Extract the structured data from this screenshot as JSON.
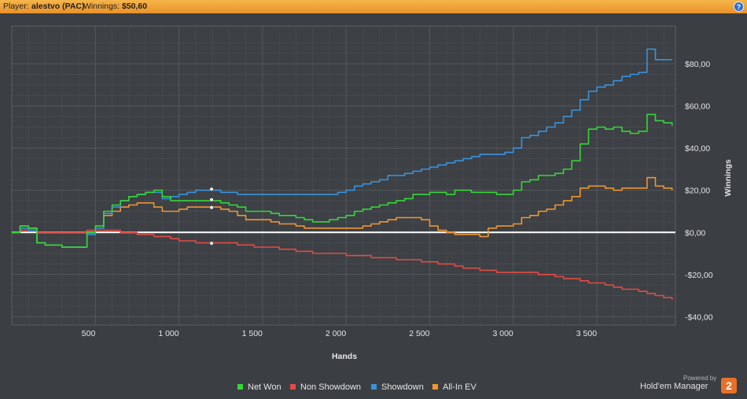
{
  "header": {
    "player_label": "Player:",
    "player_name": "alestvo (PAC)",
    "winnings_label": "Winnings:",
    "winnings_value": "$50,60",
    "help_icon": "?"
  },
  "colors": {
    "net_won": "#35d63a",
    "non_showdown": "#e04c46",
    "showdown": "#3a92de",
    "all_in_ev": "#ee9534",
    "zero_line": "#ffffff",
    "grid": "#54585d",
    "background": "#3b3e42"
  },
  "chart_data": {
    "type": "line",
    "xlabel": "Hands",
    "ylabel": "Winnings",
    "xlim": [
      0,
      3970
    ],
    "ylim": [
      -44,
      98
    ],
    "x_ticks": [
      500,
      1000,
      1500,
      2000,
      2500,
      3000,
      3500
    ],
    "x_tick_labels": [
      "500",
      "1 000",
      "1 500",
      "2 000",
      "2 500",
      "3 000",
      "3 500"
    ],
    "y_ticks": [
      80,
      60,
      40,
      20,
      0,
      -20,
      -40
    ],
    "y_tick_labels": [
      "$80,00",
      "$60,00",
      "$40,00",
      "$20,00",
      "$0,00",
      "-$20,00",
      "-$40,00"
    ],
    "grid": true,
    "legend_position": "bottom",
    "markers": {
      "x": 1195,
      "values": [
        20.5,
        15.5,
        11.8,
        -5.2
      ]
    },
    "series": [
      {
        "name": "Net Won",
        "color_key": "net_won",
        "x": [
          0,
          50,
          100,
          150,
          200,
          250,
          300,
          350,
          400,
          450,
          500,
          550,
          600,
          650,
          700,
          750,
          800,
          850,
          900,
          950,
          1000,
          1050,
          1100,
          1150,
          1200,
          1250,
          1300,
          1350,
          1400,
          1450,
          1500,
          1550,
          1600,
          1650,
          1700,
          1750,
          1800,
          1850,
          1900,
          1950,
          2000,
          2050,
          2100,
          2150,
          2200,
          2250,
          2300,
          2350,
          2400,
          2450,
          2500,
          2550,
          2600,
          2650,
          2700,
          2750,
          2800,
          2850,
          2900,
          2950,
          3000,
          3050,
          3100,
          3150,
          3200,
          3250,
          3300,
          3350,
          3400,
          3450,
          3500,
          3550,
          3600,
          3650,
          3700,
          3750,
          3800,
          3850,
          3900,
          3950
        ],
        "y": [
          0,
          3,
          2,
          -5,
          -6,
          -6,
          -7,
          -7,
          -7,
          0,
          3,
          10,
          13,
          15,
          17,
          18,
          19,
          20,
          17,
          15,
          15,
          15,
          15,
          15,
          15,
          14,
          13,
          12,
          10,
          10,
          10,
          9,
          8,
          8,
          7,
          6,
          5,
          5,
          6,
          7,
          8,
          10,
          11,
          12,
          13,
          14,
          15,
          16,
          18,
          18,
          19,
          19,
          18,
          20,
          20,
          19,
          19,
          19,
          18,
          18,
          20,
          24,
          25,
          27,
          27,
          28,
          30,
          34,
          42,
          49,
          50,
          49,
          50,
          48,
          47,
          48,
          56,
          53,
          52,
          50.6
        ]
      },
      {
        "name": "Non Showdown",
        "color_key": "non_showdown",
        "x": [
          0,
          50,
          100,
          150,
          200,
          250,
          300,
          350,
          400,
          450,
          500,
          550,
          600,
          650,
          700,
          750,
          800,
          850,
          900,
          950,
          1000,
          1050,
          1100,
          1150,
          1200,
          1250,
          1300,
          1350,
          1400,
          1450,
          1500,
          1550,
          1600,
          1650,
          1700,
          1750,
          1800,
          1850,
          1900,
          1950,
          2000,
          2050,
          2100,
          2150,
          2200,
          2250,
          2300,
          2350,
          2400,
          2450,
          2500,
          2550,
          2600,
          2650,
          2700,
          2750,
          2800,
          2850,
          2900,
          2950,
          3000,
          3050,
          3100,
          3150,
          3200,
          3250,
          3300,
          3350,
          3400,
          3450,
          3500,
          3550,
          3600,
          3650,
          3700,
          3750,
          3800,
          3850,
          3900,
          3950
        ],
        "y": [
          0,
          1,
          1,
          0,
          0,
          0,
          0,
          0,
          0,
          1,
          1,
          1,
          1,
          0,
          0,
          -1,
          -1,
          -2,
          -2,
          -3,
          -4,
          -4,
          -5,
          -5,
          -5,
          -5,
          -5,
          -6,
          -6,
          -7,
          -7,
          -7,
          -8,
          -8,
          -9,
          -9,
          -10,
          -10,
          -10,
          -10,
          -11,
          -11,
          -11,
          -12,
          -12,
          -12,
          -13,
          -13,
          -13,
          -14,
          -14,
          -15,
          -15,
          -16,
          -17,
          -17,
          -18,
          -18,
          -19,
          -19,
          -19,
          -19,
          -19,
          -20,
          -20,
          -21,
          -22,
          -22,
          -23,
          -24,
          -24,
          -25,
          -26,
          -27,
          -27,
          -28,
          -29,
          -30,
          -31,
          -32
        ]
      },
      {
        "name": "Showdown",
        "color_key": "showdown",
        "x": [
          0,
          50,
          100,
          150,
          200,
          250,
          300,
          350,
          400,
          450,
          500,
          550,
          600,
          650,
          700,
          750,
          800,
          850,
          900,
          950,
          1000,
          1050,
          1100,
          1150,
          1200,
          1250,
          1300,
          1350,
          1400,
          1450,
          1500,
          1550,
          1600,
          1650,
          1700,
          1750,
          1800,
          1850,
          1900,
          1950,
          2000,
          2050,
          2100,
          2150,
          2200,
          2250,
          2300,
          2350,
          2400,
          2450,
          2500,
          2550,
          2600,
          2650,
          2700,
          2750,
          2800,
          2850,
          2900,
          2950,
          3000,
          3050,
          3100,
          3150,
          3200,
          3250,
          3300,
          3350,
          3400,
          3450,
          3500,
          3550,
          3600,
          3650,
          3700,
          3750,
          3800,
          3850,
          3900,
          3950
        ],
        "y": [
          0,
          2,
          1,
          -5,
          -6,
          -6,
          -7,
          -7,
          -7,
          -1,
          2,
          9,
          12,
          15,
          17,
          18,
          19,
          19,
          16,
          17,
          18,
          19,
          20,
          20,
          20,
          19,
          19,
          18,
          18,
          18,
          18,
          18,
          18,
          18,
          18,
          18,
          18,
          18,
          18,
          19,
          20,
          22,
          23,
          24,
          25,
          27,
          27,
          28,
          29,
          30,
          31,
          32,
          33,
          34,
          35,
          36,
          37,
          37,
          37,
          38,
          40,
          45,
          46,
          48,
          50,
          52,
          55,
          58,
          63,
          67,
          69,
          70,
          72,
          74,
          75,
          76,
          87,
          82,
          82,
          82
        ]
      },
      {
        "name": "All-In EV",
        "color_key": "all_in_ev",
        "x": [
          0,
          50,
          100,
          150,
          200,
          250,
          300,
          350,
          400,
          450,
          500,
          550,
          600,
          650,
          700,
          750,
          800,
          850,
          900,
          950,
          1000,
          1050,
          1100,
          1150,
          1200,
          1250,
          1300,
          1350,
          1400,
          1450,
          1500,
          1550,
          1600,
          1650,
          1700,
          1750,
          1800,
          1850,
          1900,
          1950,
          2000,
          2050,
          2100,
          2150,
          2200,
          2250,
          2300,
          2350,
          2400,
          2450,
          2500,
          2550,
          2600,
          2650,
          2700,
          2750,
          2800,
          2850,
          2900,
          2950,
          3000,
          3050,
          3100,
          3150,
          3200,
          3250,
          3300,
          3350,
          3400,
          3450,
          3500,
          3550,
          3600,
          3650,
          3700,
          3750,
          3800,
          3850,
          3900,
          3950
        ],
        "y": [
          0,
          3,
          2,
          -5,
          -6,
          -6,
          -7,
          -7,
          -7,
          0,
          3,
          8,
          10,
          12,
          13,
          14,
          14,
          12,
          10,
          10,
          11,
          12,
          12,
          12,
          12,
          11,
          10,
          8,
          6,
          6,
          6,
          5,
          4,
          4,
          3,
          2,
          2,
          2,
          2,
          2,
          2,
          2,
          3,
          4,
          5,
          6,
          7,
          7,
          7,
          6,
          3,
          1,
          0,
          -1,
          -1,
          -1,
          -2,
          2,
          3,
          3,
          4,
          7,
          8,
          10,
          11,
          13,
          15,
          17,
          21,
          22,
          22,
          21,
          20,
          21,
          21,
          21,
          26,
          22,
          21,
          20
        ]
      }
    ]
  },
  "footer": {
    "powered_by": "Powered by",
    "brand": "Hold'em Manager",
    "badge": "2"
  }
}
